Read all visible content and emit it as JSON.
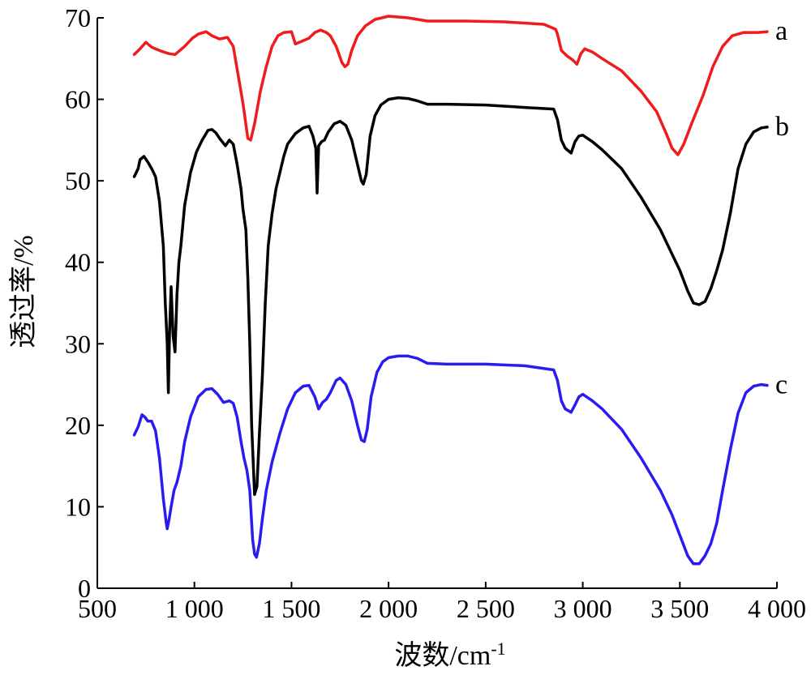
{
  "chart_data": {
    "type": "line",
    "title": "",
    "xlabel": "波数/cm",
    "xlabel_sup": "-1",
    "ylabel": "透过率/%",
    "xlim": [
      500,
      4000
    ],
    "ylim": [
      0,
      70
    ],
    "x_ticks": [
      500,
      1000,
      1500,
      2000,
      2500,
      3000,
      3500,
      4000
    ],
    "x_tick_labels": [
      "500",
      "1 000",
      "1 500",
      "2 000",
      "2 500",
      "3 000",
      "3 500",
      "4 000"
    ],
    "y_ticks": [
      0,
      10,
      20,
      30,
      40,
      50,
      60,
      70
    ],
    "y_tick_labels": [
      "0",
      "10",
      "20",
      "30",
      "40",
      "50",
      "60",
      "70"
    ],
    "grid": false,
    "legend": "none",
    "series": [
      {
        "name": "a",
        "color": "#ee1c1c",
        "points": [
          [
            690,
            65.5
          ],
          [
            720,
            66.2
          ],
          [
            750,
            67.0
          ],
          [
            780,
            66.4
          ],
          [
            830,
            65.9
          ],
          [
            870,
            65.6
          ],
          [
            900,
            65.5
          ],
          [
            950,
            66.5
          ],
          [
            990,
            67.5
          ],
          [
            1020,
            68.0
          ],
          [
            1060,
            68.3
          ],
          [
            1090,
            67.8
          ],
          [
            1130,
            67.4
          ],
          [
            1170,
            67.6
          ],
          [
            1200,
            66.5
          ],
          [
            1225,
            63
          ],
          [
            1250,
            59.5
          ],
          [
            1275,
            55.2
          ],
          [
            1290,
            55.0
          ],
          [
            1310,
            57
          ],
          [
            1340,
            61
          ],
          [
            1370,
            64
          ],
          [
            1400,
            66.5
          ],
          [
            1430,
            67.8
          ],
          [
            1460,
            68.2
          ],
          [
            1500,
            68.3
          ],
          [
            1520,
            66.8
          ],
          [
            1560,
            67.2
          ],
          [
            1590,
            67.5
          ],
          [
            1620,
            68.2
          ],
          [
            1650,
            68.5
          ],
          [
            1680,
            68.2
          ],
          [
            1700,
            67.8
          ],
          [
            1730,
            66.5
          ],
          [
            1760,
            64.5
          ],
          [
            1775,
            64.0
          ],
          [
            1790,
            64.3
          ],
          [
            1810,
            66.0
          ],
          [
            1840,
            67.8
          ],
          [
            1880,
            69.0
          ],
          [
            1930,
            69.8
          ],
          [
            2000,
            70.2
          ],
          [
            2100,
            70.0
          ],
          [
            2200,
            69.6
          ],
          [
            2400,
            69.6
          ],
          [
            2600,
            69.5
          ],
          [
            2800,
            69.2
          ],
          [
            2860,
            68.6
          ],
          [
            2870,
            68.0
          ],
          [
            2890,
            66.0
          ],
          [
            2920,
            65.3
          ],
          [
            2950,
            64.8
          ],
          [
            2970,
            64.3
          ],
          [
            2990,
            65.6
          ],
          [
            3010,
            66.2
          ],
          [
            3050,
            65.8
          ],
          [
            3100,
            65.0
          ],
          [
            3200,
            63.5
          ],
          [
            3300,
            61.0
          ],
          [
            3380,
            58.5
          ],
          [
            3430,
            55.8
          ],
          [
            3460,
            54.0
          ],
          [
            3490,
            53.2
          ],
          [
            3520,
            54.5
          ],
          [
            3560,
            57.0
          ],
          [
            3620,
            60.5
          ],
          [
            3670,
            64.0
          ],
          [
            3720,
            66.5
          ],
          [
            3770,
            67.8
          ],
          [
            3830,
            68.2
          ],
          [
            3900,
            68.2
          ],
          [
            3950,
            68.3
          ]
        ]
      },
      {
        "name": "b",
        "color": "#000000",
        "points": [
          [
            690,
            50.5
          ],
          [
            710,
            51.5
          ],
          [
            720,
            52.6
          ],
          [
            740,
            53.0
          ],
          [
            760,
            52.3
          ],
          [
            780,
            51.5
          ],
          [
            800,
            50.5
          ],
          [
            820,
            47.5
          ],
          [
            840,
            42.0
          ],
          [
            850,
            35.0
          ],
          [
            860,
            30.0
          ],
          [
            866,
            24.0
          ],
          [
            872,
            31.5
          ],
          [
            880,
            37.0
          ],
          [
            890,
            31.0
          ],
          [
            900,
            29.0
          ],
          [
            910,
            36.0
          ],
          [
            920,
            40.0
          ],
          [
            930,
            42.0
          ],
          [
            950,
            47.0
          ],
          [
            980,
            51.0
          ],
          [
            1010,
            53.5
          ],
          [
            1040,
            55.0
          ],
          [
            1070,
            56.2
          ],
          [
            1090,
            56.3
          ],
          [
            1110,
            55.9
          ],
          [
            1130,
            55.2
          ],
          [
            1160,
            54.3
          ],
          [
            1180,
            55.0
          ],
          [
            1200,
            54.5
          ],
          [
            1220,
            52.0
          ],
          [
            1240,
            49.0
          ],
          [
            1250,
            46.5
          ],
          [
            1265,
            44.0
          ],
          [
            1275,
            38.0
          ],
          [
            1285,
            30.0
          ],
          [
            1295,
            20.0
          ],
          [
            1310,
            11.5
          ],
          [
            1322,
            12.5
          ],
          [
            1335,
            19.0
          ],
          [
            1350,
            26.0
          ],
          [
            1365,
            35.0
          ],
          [
            1380,
            42.0
          ],
          [
            1400,
            46.0
          ],
          [
            1420,
            49.0
          ],
          [
            1440,
            51.0
          ],
          [
            1460,
            53.0
          ],
          [
            1480,
            54.5
          ],
          [
            1520,
            55.8
          ],
          [
            1560,
            56.5
          ],
          [
            1590,
            56.7
          ],
          [
            1610,
            55.5
          ],
          [
            1625,
            54.0
          ],
          [
            1632,
            48.5
          ],
          [
            1640,
            54.3
          ],
          [
            1655,
            54.8
          ],
          [
            1670,
            55.0
          ],
          [
            1690,
            56.0
          ],
          [
            1720,
            57.0
          ],
          [
            1750,
            57.3
          ],
          [
            1780,
            56.8
          ],
          [
            1810,
            55.0
          ],
          [
            1840,
            52.0
          ],
          [
            1860,
            50.0
          ],
          [
            1870,
            49.6
          ],
          [
            1885,
            50.8
          ],
          [
            1905,
            55.5
          ],
          [
            1930,
            58.0
          ],
          [
            1960,
            59.3
          ],
          [
            2000,
            60.0
          ],
          [
            2050,
            60.2
          ],
          [
            2100,
            60.1
          ],
          [
            2150,
            59.8
          ],
          [
            2200,
            59.4
          ],
          [
            2300,
            59.4
          ],
          [
            2500,
            59.3
          ],
          [
            2700,
            59.0
          ],
          [
            2850,
            58.8
          ],
          [
            2870,
            57.5
          ],
          [
            2890,
            55.0
          ],
          [
            2910,
            54.0
          ],
          [
            2940,
            53.4
          ],
          [
            2960,
            54.8
          ],
          [
            2980,
            55.5
          ],
          [
            3000,
            55.6
          ],
          [
            3050,
            54.8
          ],
          [
            3100,
            53.8
          ],
          [
            3200,
            51.5
          ],
          [
            3300,
            48.0
          ],
          [
            3400,
            44.0
          ],
          [
            3450,
            41.5
          ],
          [
            3500,
            39.0
          ],
          [
            3540,
            36.5
          ],
          [
            3570,
            35.0
          ],
          [
            3600,
            34.8
          ],
          [
            3630,
            35.2
          ],
          [
            3660,
            36.8
          ],
          [
            3690,
            39.0
          ],
          [
            3720,
            41.5
          ],
          [
            3760,
            46.0
          ],
          [
            3800,
            51.5
          ],
          [
            3840,
            54.5
          ],
          [
            3880,
            56.0
          ],
          [
            3920,
            56.5
          ],
          [
            3950,
            56.6
          ]
        ]
      },
      {
        "name": "c",
        "color": "#2a1cee",
        "points": [
          [
            690,
            18.8
          ],
          [
            710,
            19.8
          ],
          [
            730,
            21.3
          ],
          [
            745,
            21.0
          ],
          [
            760,
            20.5
          ],
          [
            780,
            20.5
          ],
          [
            800,
            19.3
          ],
          [
            820,
            16.0
          ],
          [
            840,
            11.0
          ],
          [
            855,
            8.0
          ],
          [
            860,
            7.3
          ],
          [
            870,
            8.5
          ],
          [
            880,
            10.0
          ],
          [
            895,
            12.0
          ],
          [
            910,
            13.0
          ],
          [
            930,
            15.0
          ],
          [
            950,
            18.0
          ],
          [
            980,
            21.0
          ],
          [
            1020,
            23.5
          ],
          [
            1060,
            24.4
          ],
          [
            1090,
            24.5
          ],
          [
            1120,
            23.8
          ],
          [
            1150,
            22.8
          ],
          [
            1180,
            23.0
          ],
          [
            1200,
            22.7
          ],
          [
            1220,
            21.0
          ],
          [
            1240,
            18.0
          ],
          [
            1255,
            16.0
          ],
          [
            1270,
            14.5
          ],
          [
            1285,
            12.0
          ],
          [
            1300,
            6.0
          ],
          [
            1310,
            4.2
          ],
          [
            1320,
            3.8
          ],
          [
            1335,
            5.5
          ],
          [
            1350,
            8.5
          ],
          [
            1370,
            12.0
          ],
          [
            1400,
            15.5
          ],
          [
            1440,
            19.0
          ],
          [
            1480,
            22.0
          ],
          [
            1520,
            24.0
          ],
          [
            1560,
            24.8
          ],
          [
            1590,
            24.9
          ],
          [
            1620,
            23.5
          ],
          [
            1640,
            22.0
          ],
          [
            1660,
            22.8
          ],
          [
            1680,
            23.2
          ],
          [
            1700,
            24.0
          ],
          [
            1730,
            25.5
          ],
          [
            1750,
            25.8
          ],
          [
            1780,
            25.0
          ],
          [
            1810,
            23.0
          ],
          [
            1840,
            20.0
          ],
          [
            1860,
            18.2
          ],
          [
            1875,
            18.0
          ],
          [
            1890,
            19.5
          ],
          [
            1910,
            23.5
          ],
          [
            1940,
            26.5
          ],
          [
            1970,
            27.8
          ],
          [
            2000,
            28.3
          ],
          [
            2050,
            28.5
          ],
          [
            2100,
            28.5
          ],
          [
            2150,
            28.2
          ],
          [
            2200,
            27.6
          ],
          [
            2300,
            27.5
          ],
          [
            2500,
            27.5
          ],
          [
            2700,
            27.3
          ],
          [
            2850,
            26.8
          ],
          [
            2870,
            25.5
          ],
          [
            2890,
            23.0
          ],
          [
            2910,
            22.0
          ],
          [
            2940,
            21.6
          ],
          [
            2960,
            22.5
          ],
          [
            2980,
            23.5
          ],
          [
            3000,
            23.8
          ],
          [
            3050,
            23.0
          ],
          [
            3100,
            22.0
          ],
          [
            3200,
            19.5
          ],
          [
            3300,
            16.0
          ],
          [
            3400,
            12.0
          ],
          [
            3460,
            9.0
          ],
          [
            3500,
            6.5
          ],
          [
            3540,
            4.0
          ],
          [
            3570,
            3.0
          ],
          [
            3600,
            3.0
          ],
          [
            3630,
            4.0
          ],
          [
            3660,
            5.5
          ],
          [
            3690,
            8.0
          ],
          [
            3720,
            12.0
          ],
          [
            3760,
            17.0
          ],
          [
            3800,
            21.5
          ],
          [
            3840,
            24.0
          ],
          [
            3880,
            24.8
          ],
          [
            3920,
            25.0
          ],
          [
            3950,
            24.9
          ]
        ]
      }
    ]
  }
}
